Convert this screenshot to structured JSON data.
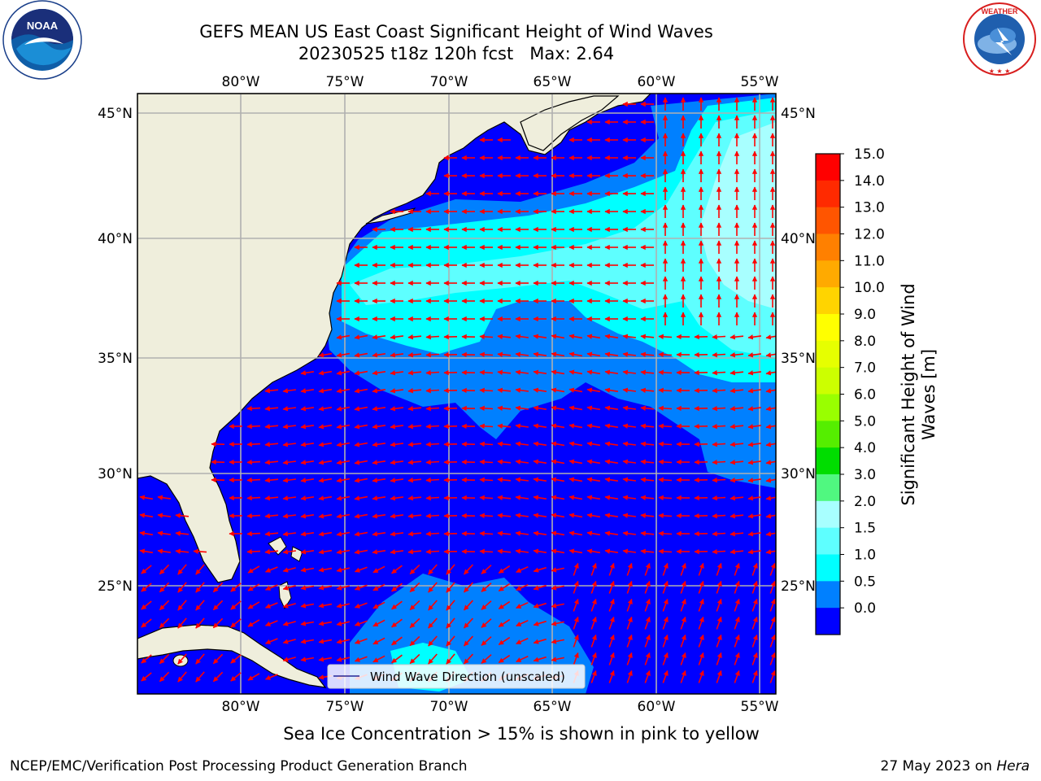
{
  "title": {
    "line1": "GEFS MEAN US East Coast Significant Height of Wind Waves",
    "line2": "20230525 t18z 120h fcst   Max: 2.64"
  },
  "logos": {
    "left": {
      "name": "noaa-logo",
      "text": "NOAA",
      "ring_text": "NATIONAL OCEANIC AND ATMOSPHERIC ADMINISTRATION · U.S. DEPARTMENT OF COMMERCE"
    },
    "right": {
      "name": "nws-logo",
      "ring_text": "NATIONAL WEATHER SERVICE"
    }
  },
  "map": {
    "lon_labels": [
      "80°W",
      "75°W",
      "70°W",
      "65°W",
      "60°W",
      "55°W"
    ],
    "lat_labels": [
      "45°N",
      "40°N",
      "35°N",
      "30°N",
      "25°N"
    ],
    "legend_label": "Wind Wave Direction (unscaled)",
    "colors": {
      "land": "#efeedc",
      "wave_0_0p5": "#0000ff",
      "wave_0p5_1": "#0080ff",
      "wave_1_1p5": "#00ffff",
      "wave_1p5_2": "#5effff",
      "wave_2_3": "#a8ffff",
      "arrow": "#ff0000",
      "grid": "#b0b0b0"
    }
  },
  "colorbar": {
    "label": "Significant Height of Wind Waves [m]",
    "label_line1": "Significant Height of Wind",
    "label_line2": "Waves [m]",
    "ticks": [
      "15.0",
      "14.0",
      "13.0",
      "12.0",
      "11.0",
      "10.0",
      "9.0",
      "8.0",
      "7.0",
      "6.0",
      "5.0",
      "4.0",
      "3.0",
      "2.0",
      "1.5",
      "1.0",
      "0.5",
      "0.0"
    ],
    "colors_top_to_bottom": [
      "#ff0000",
      "#ff2a00",
      "#ff5500",
      "#ff8000",
      "#ffaa00",
      "#ffd400",
      "#ffff00",
      "#e6ff00",
      "#ccff00",
      "#99ff00",
      "#55ee00",
      "#00dd00",
      "#50f880",
      "#a8ffff",
      "#5effff",
      "#00ffff",
      "#0080ff",
      "#0000ff"
    ]
  },
  "footer": {
    "note": "Sea Ice Concentration > 15% is shown in pink to yellow",
    "left": "NCEP/EMC/Verification Post Processing Product Generation Branch",
    "right_date": "27 May 2023 on ",
    "right_host": "Hera"
  }
}
